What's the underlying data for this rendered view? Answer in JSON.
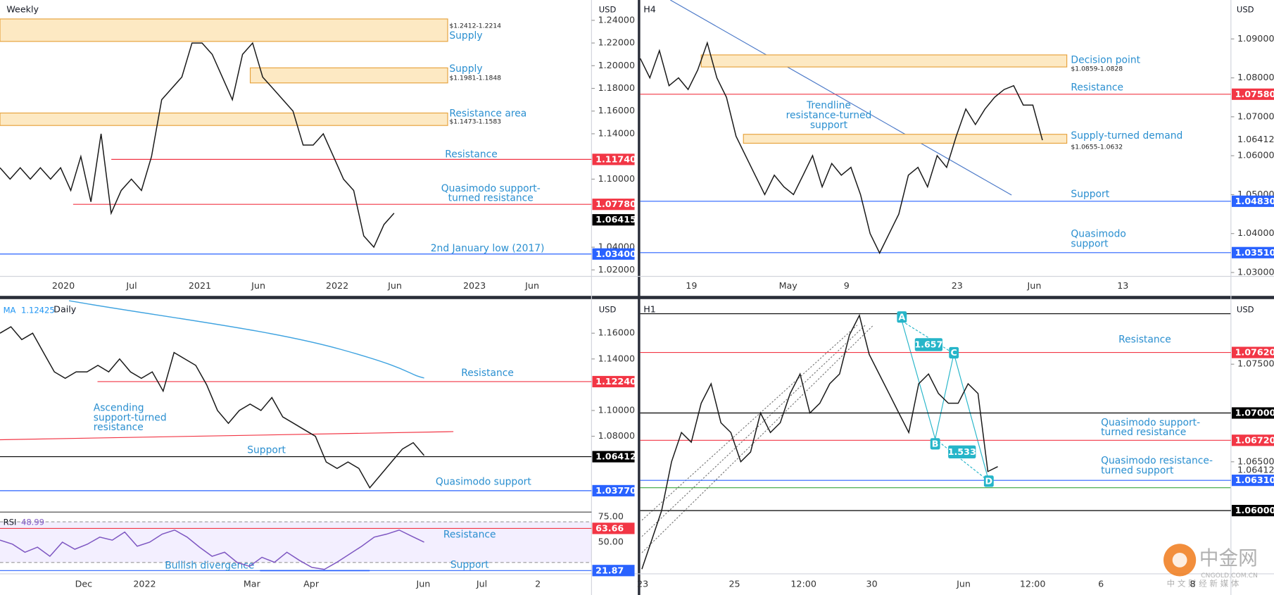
{
  "chart_data": [
    {
      "type": "line",
      "title": "Weekly",
      "currency": "USD",
      "ylim": [
        1.0143,
        1.2579
      ],
      "yticks": [
        {
          "value": 1.24,
          "label": "1.24000"
        },
        {
          "value": 1.22,
          "label": "1.22000"
        },
        {
          "value": 1.2,
          "label": "1.20000"
        },
        {
          "value": 1.18,
          "label": "1.18000"
        },
        {
          "value": 1.16,
          "label": "1.16000"
        },
        {
          "value": 1.14,
          "label": "1.14000"
        },
        {
          "value": 1.1,
          "label": "1.10000"
        },
        {
          "value": 1.04,
          "label": "1.04000"
        },
        {
          "value": 1.02,
          "label": "1.02000"
        }
      ],
      "x_labels": [
        "2020",
        "Jul",
        "2021",
        "Jun",
        "2022",
        "Jun",
        "2023",
        "Jun"
      ],
      "values": [
        1.11,
        1.1,
        1.11,
        1.1,
        1.11,
        1.1,
        1.11,
        1.09,
        1.12,
        1.08,
        1.14,
        1.07,
        1.09,
        1.1,
        1.09,
        1.12,
        1.17,
        1.18,
        1.19,
        1.22,
        1.22,
        1.21,
        1.19,
        1.17,
        1.21,
        1.22,
        1.19,
        1.18,
        1.17,
        1.16,
        1.13,
        1.13,
        1.14,
        1.12,
        1.1,
        1.09,
        1.05,
        1.04,
        1.06,
        1.07
      ],
      "current": {
        "value": 1.06415,
        "label": "1.06415"
      },
      "zones": [
        {
          "name": [
            "Supply"
          ],
          "range_label": "$1.2412-1.2214",
          "high": 1.2412,
          "low": 1.2214
        },
        {
          "name": [
            "Supply"
          ],
          "range_label": "$1.1981-1.1848",
          "high": 1.1981,
          "low": 1.1848
        },
        {
          "name": [
            "Resistance area"
          ],
          "range_label": "$1.1473-1.1583",
          "high": 1.1583,
          "low": 1.1473
        }
      ],
      "levels": [
        {
          "name": [
            "Resistance"
          ],
          "value": 1.1174,
          "label": "1.11740",
          "color": "#f23645"
        },
        {
          "name": [
            "Quasimodo support-",
            "turned resistance"
          ],
          "value": 1.0778,
          "label": "1.07780",
          "color": "#f23645"
        },
        {
          "name": [
            "2nd January low (2017)"
          ],
          "value": 1.034,
          "label": "1.03400",
          "color": "#2962ff"
        }
      ]
    },
    {
      "type": "line",
      "title": "H4",
      "currency": "USD",
      "ylim": [
        1.029,
        1.1
      ],
      "yticks": [
        {
          "value": 1.09,
          "label": "1.09000"
        },
        {
          "value": 1.08,
          "label": "1.08000"
        },
        {
          "value": 1.07,
          "label": "1.07000"
        },
        {
          "value": 1.06,
          "label": "1.06000"
        },
        {
          "value": 1.05,
          "label": "1.05000"
        },
        {
          "value": 1.04,
          "label": "1.04000"
        },
        {
          "value": 1.03,
          "label": "1.03000"
        }
      ],
      "x_labels": [
        "19",
        "May",
        "9",
        "23",
        "Jun",
        "13"
      ],
      "values": [
        1.085,
        1.08,
        1.087,
        1.078,
        1.08,
        1.077,
        1.082,
        1.089,
        1.08,
        1.075,
        1.065,
        1.06,
        1.055,
        1.05,
        1.055,
        1.052,
        1.05,
        1.055,
        1.06,
        1.052,
        1.058,
        1.055,
        1.057,
        1.05,
        1.04,
        1.035,
        1.04,
        1.045,
        1.055,
        1.057,
        1.052,
        1.06,
        1.057,
        1.065,
        1.072,
        1.068,
        1.072,
        1.075,
        1.077,
        1.078,
        1.073,
        1.073,
        1.064
      ],
      "current": {
        "value": 1.06412,
        "label": "1.06412"
      },
      "zones": [
        {
          "name": [
            "Decision point"
          ],
          "range_label": "$1.0859-1.0828",
          "high": 1.0859,
          "low": 1.0828
        },
        {
          "name": [
            "Supply-turned demand"
          ],
          "range_label": "$1.0655-1.0632",
          "high": 1.0655,
          "low": 1.0632
        }
      ],
      "levels": [
        {
          "name": [
            "Resistance"
          ],
          "value": 1.0758,
          "label": "1.07580",
          "color": "#f23645"
        },
        {
          "name": [
            "Support"
          ],
          "value": 1.0483,
          "label": "1.04830",
          "color": "#2962ff"
        },
        {
          "name": [
            "Quasimodo",
            "support"
          ],
          "value": 1.0351,
          "label": "1.03510",
          "color": "#2962ff"
        }
      ],
      "annotations": [
        {
          "text": [
            "Trendline",
            "resistance-turned",
            "support"
          ]
        }
      ]
    },
    {
      "type": "line",
      "title": "Daily",
      "currency": "USD",
      "ma": {
        "name": "MA",
        "value": 1.12425
      },
      "ylim": [
        1.0211,
        1.1852
      ],
      "yticks": [
        {
          "value": 1.16,
          "label": "1.16000"
        },
        {
          "value": 1.14,
          "label": "1.14000"
        },
        {
          "value": 1.1,
          "label": "1.10000"
        },
        {
          "value": 1.08,
          "label": "1.08000"
        }
      ],
      "x_labels": [
        "Dec",
        "2022",
        "Mar",
        "Apr",
        "Jun",
        "Jul",
        "2"
      ],
      "values": [
        1.16,
        1.165,
        1.155,
        1.16,
        1.145,
        1.13,
        1.125,
        1.13,
        1.13,
        1.135,
        1.13,
        1.14,
        1.13,
        1.125,
        1.13,
        1.115,
        1.145,
        1.14,
        1.135,
        1.12,
        1.1,
        1.09,
        1.1,
        1.105,
        1.1,
        1.11,
        1.095,
        1.09,
        1.085,
        1.08,
        1.06,
        1.055,
        1.06,
        1.055,
        1.04,
        1.05,
        1.06,
        1.07,
        1.075,
        1.065
      ],
      "levels": [
        {
          "name": [
            "Resistance"
          ],
          "value": 1.1224,
          "label": "1.12240",
          "color": "#f23645"
        },
        {
          "name": [
            "Support"
          ],
          "value": 1.06412,
          "label": "1.06412",
          "color": "#000000"
        },
        {
          "name": [
            "Quasimodo support"
          ],
          "value": 1.0377,
          "label": "1.03770",
          "color": "#2962ff"
        }
      ],
      "annotations": [
        {
          "text": [
            "Ascending",
            "support-turned",
            "resistance"
          ]
        }
      ],
      "indicator": {
        "name": "RSI",
        "value": 48.99,
        "ylim": [
          19.4,
          78.2
        ],
        "yticks": [
          {
            "value": 75,
            "label": "75.00"
          },
          {
            "value": 50,
            "label": "50.00"
          }
        ],
        "values": [
          52,
          48,
          40,
          45,
          36,
          50,
          43,
          48,
          55,
          52,
          60,
          46,
          50,
          58,
          62,
          55,
          45,
          36,
          40,
          30,
          26,
          35,
          30,
          40,
          32,
          25,
          23,
          30,
          38,
          46,
          55,
          58,
          62,
          56,
          50
        ],
        "levels": [
          {
            "name": [
              "Resistance"
            ],
            "value": 63.66,
            "color": "#f23645"
          },
          {
            "name": [
              "Support"
            ],
            "value": 21.87,
            "color": "#2962ff"
          }
        ],
        "annotations": [
          {
            "text": [
              "Bullish divergence"
            ]
          }
        ]
      }
    },
    {
      "type": "line",
      "title": "H1",
      "currency": "USD",
      "ylim": [
        1.0536,
        1.0815
      ],
      "yticks": [
        {
          "value": 1.075,
          "label": "1.07500"
        },
        {
          "value": 1.065,
          "label": "1.06500"
        }
      ],
      "x_labels": [
        "23",
        "25",
        "12:00",
        "30",
        "Jun",
        "12:00",
        "6",
        "8"
      ],
      "values": [
        1.054,
        1.057,
        1.06,
        1.065,
        1.068,
        1.067,
        1.071,
        1.073,
        1.069,
        1.068,
        1.065,
        1.066,
        1.07,
        1.068,
        1.069,
        1.072,
        1.074,
        1.07,
        1.071,
        1.073,
        1.074,
        1.078,
        1.08,
        1.076,
        1.074,
        1.072,
        1.07,
        1.068,
        1.073,
        1.074,
        1.072,
        1.071,
        1.071,
        1.073,
        1.072,
        1.064,
        1.0645
      ],
      "current": {
        "value": 1.06412,
        "label": "1.06412"
      },
      "levels": [
        {
          "name": [
            "Resistance"
          ],
          "value": 1.0762,
          "label": "1.07620",
          "color": "#f23645"
        },
        {
          "value": 1.07,
          "label": "1.07000",
          "color": "#000000"
        },
        {
          "name": [
            "Quasimodo support-",
            "turned resistance"
          ],
          "value": 1.0672,
          "label": "1.06720",
          "color": "#f23645"
        },
        {
          "name": [
            "Quasimodo resistance-",
            "turned support"
          ],
          "value": 1.0631,
          "label": "1.06310",
          "color": "#2962ff"
        },
        {
          "value": 1.06,
          "label": "1.06000",
          "color": "#000000"
        }
      ],
      "pattern": {
        "points": [
          "A",
          "B",
          "C",
          "D"
        ],
        "ratios": [
          "1.657",
          "1.533"
        ]
      }
    }
  ],
  "watermark": {
    "brand": "中金网",
    "site": "CNGOLD.COM.CN",
    "tagline": "中 文 财 经 新 媒 体"
  }
}
